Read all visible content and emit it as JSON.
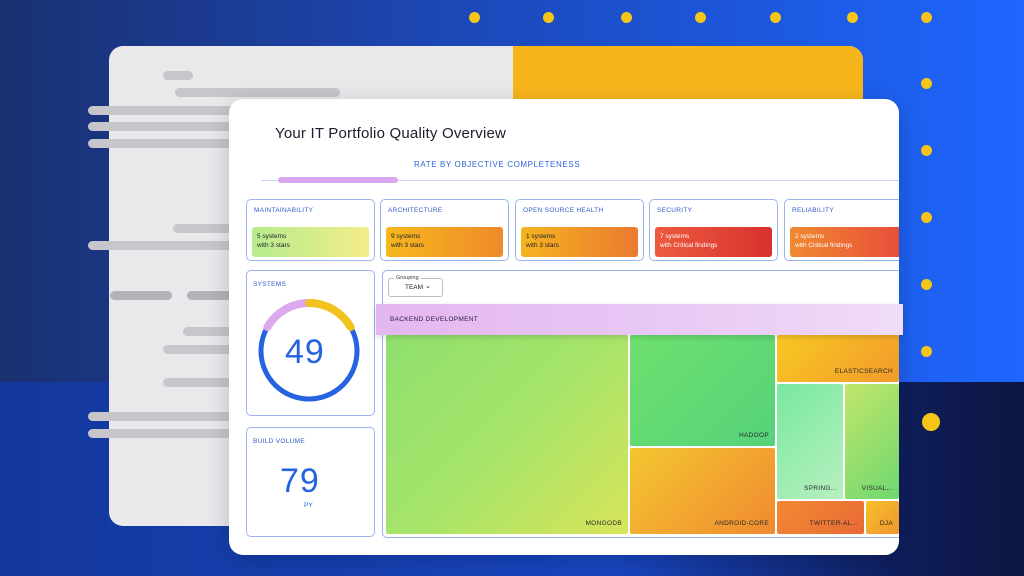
{
  "colors": {
    "accent_blue": "#2663e0",
    "dot_yellow": "#f5c518",
    "back_yellow": "#f7b51c",
    "tab_indicator": "#d9a6f0"
  },
  "header": {
    "title": "Your IT Portfolio Quality Overview",
    "active_tab": "RATE BY OBJECTIVE COMPLETENESS"
  },
  "kpis": [
    {
      "label": "MAINTAINABILITY",
      "line1": "5 systems",
      "line2": "with 3 stars"
    },
    {
      "label": "ARCHITECTURE",
      "line1": "9 systems",
      "line2": "with 3 stars"
    },
    {
      "label": "OPEN SOURCE HEALTH",
      "line1": "1 systems",
      "line2": "with 3 stars"
    },
    {
      "label": "SECURITY",
      "line1": "7 systems",
      "line2": "with Critical findings"
    },
    {
      "label": "RELIABILITY",
      "line1": "2 systems",
      "line2": "with Critical findings"
    }
  ],
  "systems": {
    "label": "SYSTEMS",
    "value": "49"
  },
  "build_volume": {
    "label": "BUILD VOLUME",
    "value": "79",
    "unit": "PY"
  },
  "grouping": {
    "caption": "Grouping",
    "value": "TEAM",
    "chevron": "⌄"
  },
  "treemap": {
    "group_label": "BACKEND DEVELOPMENT",
    "tiles": {
      "mongodb": "MONGODB",
      "hadoop": "HADOOP",
      "android_core": "ANDROID-CORE",
      "elasticsearch": "ELASTICSEARCH",
      "spring": "SPRING...",
      "visual": "VISUAL...",
      "twitter": "TWITTER-AL...",
      "dja": "DJA"
    }
  }
}
